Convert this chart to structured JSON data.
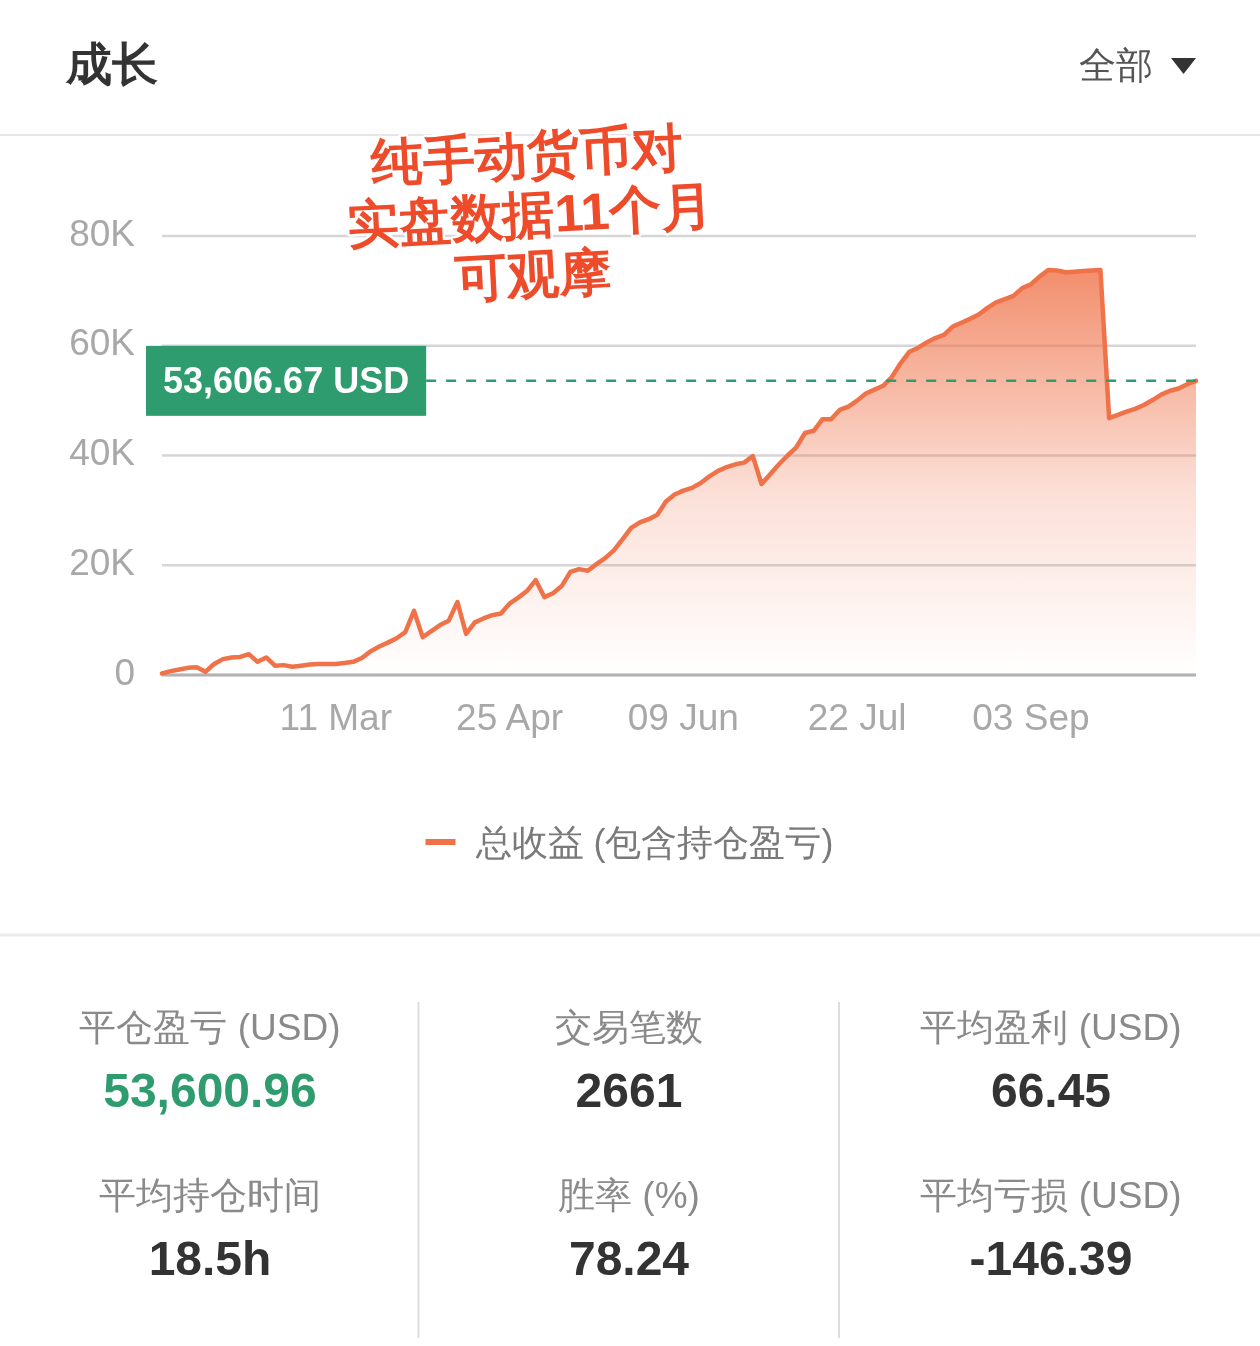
{
  "chart_data": [
    {
      "type": "area",
      "title": "成长",
      "categories": [
        null,
        null,
        null,
        null,
        null,
        null,
        null,
        null,
        null,
        null,
        null,
        null,
        null,
        null,
        null,
        null,
        null,
        null,
        null,
        null,
        "11 Mar",
        null,
        null,
        null,
        null,
        null,
        null,
        null,
        null,
        null,
        null,
        null,
        null,
        null,
        null,
        null,
        null,
        null,
        null,
        null,
        "25 Apr",
        null,
        null,
        null,
        null,
        null,
        null,
        null,
        null,
        null,
        null,
        null,
        null,
        null,
        null,
        null,
        null,
        null,
        null,
        null,
        "09 Jun",
        null,
        null,
        null,
        null,
        null,
        null,
        null,
        null,
        null,
        null,
        null,
        null,
        null,
        null,
        null,
        null,
        null,
        null,
        null,
        "22 Jul",
        null,
        null,
        null,
        null,
        null,
        null,
        null,
        null,
        null,
        null,
        null,
        null,
        null,
        null,
        null,
        null,
        null,
        null,
        null,
        "03 Sep",
        null,
        null,
        null,
        null,
        null,
        null,
        null,
        null,
        null,
        null,
        null,
        null,
        null,
        null,
        null,
        null,
        null,
        null,
        null
      ],
      "series": [
        {
          "name": "总收益 (包含持仓盈亏)",
          "color": "#ef7249",
          "values": [
            300,
            700,
            1000,
            1300,
            1400,
            600,
            2000,
            2900,
            3200,
            3300,
            3800,
            2400,
            3200,
            1700,
            1800,
            1500,
            1700,
            1900,
            2000,
            2000,
            2000,
            2200,
            2400,
            3100,
            4300,
            5200,
            5900,
            6700,
            7800,
            11700,
            6900,
            8000,
            9100,
            9900,
            13300,
            7500,
            9600,
            10300,
            10900,
            11200,
            13000,
            14100,
            15300,
            17300,
            14200,
            14900,
            16200,
            18800,
            19300,
            19000,
            20200,
            21300,
            22700,
            24700,
            26800,
            27800,
            28400,
            29200,
            31600,
            32900,
            33600,
            34100,
            35000,
            36200,
            37200,
            37900,
            38400,
            38700,
            39900,
            34800,
            36600,
            38400,
            40000,
            41500,
            44100,
            44500,
            46600,
            46600,
            48300,
            48900,
            50000,
            51300,
            52000,
            52700,
            54300,
            56800,
            58900,
            59600,
            60600,
            61400,
            62000,
            63500,
            64200,
            64900,
            65700,
            66900,
            67900,
            68500,
            69100,
            70500,
            71200,
            72600,
            73800,
            73700,
            73400,
            73500,
            73600,
            73700,
            73800,
            46800,
            47400,
            48000,
            48500,
            49200,
            50100,
            51100,
            51800,
            52200,
            53000,
            53600
          ]
        }
      ],
      "ylim": [
        0,
        80000
      ],
      "yticks": [
        0,
        {
          "value": 20000,
          "label": "20K"
        },
        {
          "value": 40000,
          "label": "40K"
        },
        {
          "value": 60000,
          "label": "60K"
        },
        {
          "value": 80000,
          "label": "80K"
        }
      ],
      "grid": "y",
      "legend": "bottom",
      "ref_lines": [
        {
          "axis": "y",
          "value": 53606.67,
          "label": "53,606.67 USD",
          "color": "#2f9c70",
          "line_style": "dashed"
        }
      ],
      "annotations": [
        "全部",
        "纯手动货币对",
        "实盘数据11个月",
        "可观摩"
      ]
    },
    {
      "type": "other",
      "annotations": [
        "平仓盈亏 (USD)",
        "53,600.96",
        "交易笔数",
        "2661",
        "平均盈利 (USD)",
        "66.45",
        "平均持仓时间",
        "18.5h",
        "胜率 (%)",
        "78.24",
        "平均亏损 (USD)",
        "-146.39"
      ],
      "colors": [
        "#8a8a8a",
        "#2f9c70",
        "#8a8a8a",
        "#333333",
        "#8a8a8a",
        "#333333",
        "#8a8a8a",
        "#333333",
        "#8a8a8a",
        "#333333",
        "#8a8a8a",
        "#333333"
      ]
    }
  ]
}
